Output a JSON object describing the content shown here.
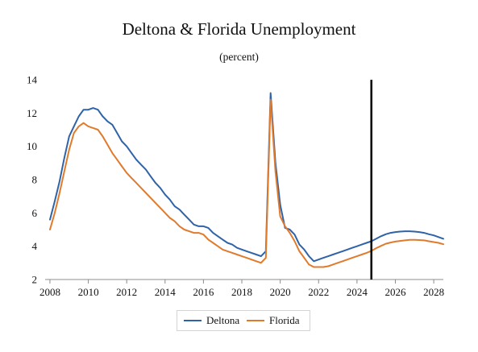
{
  "chart_data": {
    "type": "line",
    "title": "Deltona & Florida Unemployment",
    "subtitle": "(percent)",
    "xlabel": "",
    "ylabel": "",
    "xlim": [
      2007.75,
      2028.5
    ],
    "ylim": [
      2,
      14
    ],
    "yticks": [
      2,
      4,
      6,
      8,
      10,
      12,
      14
    ],
    "xticks": [
      2008,
      2010,
      2012,
      2014,
      2016,
      2018,
      2020,
      2022,
      2024,
      2026,
      2028
    ],
    "grid": false,
    "legend_position": "bottom",
    "forecast_line_x": 2024.75,
    "series": [
      {
        "name": "Deltona",
        "color": "#2f63a8",
        "x": [
          2008.0,
          2008.25,
          2008.5,
          2008.75,
          2009.0,
          2009.25,
          2009.5,
          2009.75,
          2010.0,
          2010.25,
          2010.5,
          2010.75,
          2011.0,
          2011.25,
          2011.5,
          2011.75,
          2012.0,
          2012.25,
          2012.5,
          2012.75,
          2013.0,
          2013.25,
          2013.5,
          2013.75,
          2014.0,
          2014.25,
          2014.5,
          2014.75,
          2015.0,
          2015.25,
          2015.5,
          2015.75,
          2016.0,
          2016.25,
          2016.5,
          2016.75,
          2017.0,
          2017.25,
          2017.5,
          2017.75,
          2018.0,
          2018.25,
          2018.5,
          2018.75,
          2019.0,
          2019.25,
          2019.5,
          2019.75,
          2020.0,
          2020.25,
          2020.5,
          2020.75,
          2021.0,
          2021.25,
          2021.5,
          2021.75,
          2022.0,
          2022.25,
          2022.5,
          2022.75,
          2023.0,
          2023.25,
          2023.5,
          2023.75,
          2024.0,
          2024.25,
          2024.5,
          2024.75,
          2025.0,
          2025.25,
          2025.5,
          2025.75,
          2026.0,
          2026.25,
          2026.5,
          2026.75,
          2027.0,
          2027.25,
          2027.5,
          2027.75,
          2028.0,
          2028.25,
          2028.5
        ],
        "y": [
          5.6,
          6.7,
          7.9,
          9.3,
          10.6,
          11.2,
          11.8,
          12.2,
          12.2,
          12.3,
          12.2,
          11.8,
          11.5,
          11.3,
          10.8,
          10.3,
          10.0,
          9.6,
          9.2,
          8.9,
          8.6,
          8.2,
          7.8,
          7.5,
          7.1,
          6.8,
          6.4,
          6.2,
          5.9,
          5.6,
          5.3,
          5.2,
          5.2,
          5.1,
          4.8,
          4.6,
          4.4,
          4.2,
          4.1,
          3.9,
          3.8,
          3.7,
          3.6,
          3.5,
          3.4,
          3.7,
          13.2,
          9.0,
          6.5,
          5.1,
          5.0,
          4.7,
          4.1,
          3.8,
          3.4,
          3.1,
          3.2,
          3.3,
          3.4,
          3.5,
          3.6,
          3.7,
          3.8,
          3.9,
          4.0,
          4.1,
          4.2,
          4.3,
          4.45,
          4.6,
          4.72,
          4.8,
          4.85,
          4.88,
          4.9,
          4.9,
          4.88,
          4.85,
          4.8,
          4.72,
          4.65,
          4.55,
          4.45
        ]
      },
      {
        "name": "Florida",
        "color": "#e07b2d",
        "x": [
          2008.0,
          2008.25,
          2008.5,
          2008.75,
          2009.0,
          2009.25,
          2009.5,
          2009.75,
          2010.0,
          2010.25,
          2010.5,
          2010.75,
          2011.0,
          2011.25,
          2011.5,
          2011.75,
          2012.0,
          2012.25,
          2012.5,
          2012.75,
          2013.0,
          2013.25,
          2013.5,
          2013.75,
          2014.0,
          2014.25,
          2014.5,
          2014.75,
          2015.0,
          2015.25,
          2015.5,
          2015.75,
          2016.0,
          2016.25,
          2016.5,
          2016.75,
          2017.0,
          2017.25,
          2017.5,
          2017.75,
          2018.0,
          2018.25,
          2018.5,
          2018.75,
          2019.0,
          2019.25,
          2019.5,
          2019.75,
          2020.0,
          2020.25,
          2020.5,
          2020.75,
          2021.0,
          2021.25,
          2021.5,
          2021.75,
          2022.0,
          2022.25,
          2022.5,
          2022.75,
          2023.0,
          2023.25,
          2023.5,
          2023.75,
          2024.0,
          2024.25,
          2024.5,
          2024.75,
          2025.0,
          2025.25,
          2025.5,
          2025.75,
          2026.0,
          2026.25,
          2026.5,
          2026.75,
          2027.0,
          2027.25,
          2027.5,
          2027.75,
          2028.0,
          2028.25,
          2028.5
        ],
        "y": [
          5.0,
          6.0,
          7.2,
          8.5,
          9.8,
          10.8,
          11.2,
          11.4,
          11.2,
          11.1,
          11.0,
          10.6,
          10.1,
          9.6,
          9.2,
          8.8,
          8.4,
          8.1,
          7.8,
          7.5,
          7.2,
          6.9,
          6.6,
          6.3,
          6.0,
          5.7,
          5.5,
          5.2,
          5.0,
          4.9,
          4.8,
          4.8,
          4.7,
          4.4,
          4.2,
          4.0,
          3.8,
          3.7,
          3.6,
          3.5,
          3.4,
          3.3,
          3.2,
          3.1,
          3.0,
          3.3,
          12.8,
          8.5,
          5.8,
          5.2,
          4.8,
          4.3,
          3.7,
          3.3,
          2.9,
          2.75,
          2.75,
          2.75,
          2.8,
          2.9,
          3.0,
          3.1,
          3.2,
          3.3,
          3.4,
          3.5,
          3.6,
          3.72,
          3.88,
          4.02,
          4.15,
          4.22,
          4.28,
          4.32,
          4.35,
          4.38,
          4.38,
          4.37,
          4.35,
          4.3,
          4.25,
          4.2,
          4.12
        ]
      }
    ]
  }
}
